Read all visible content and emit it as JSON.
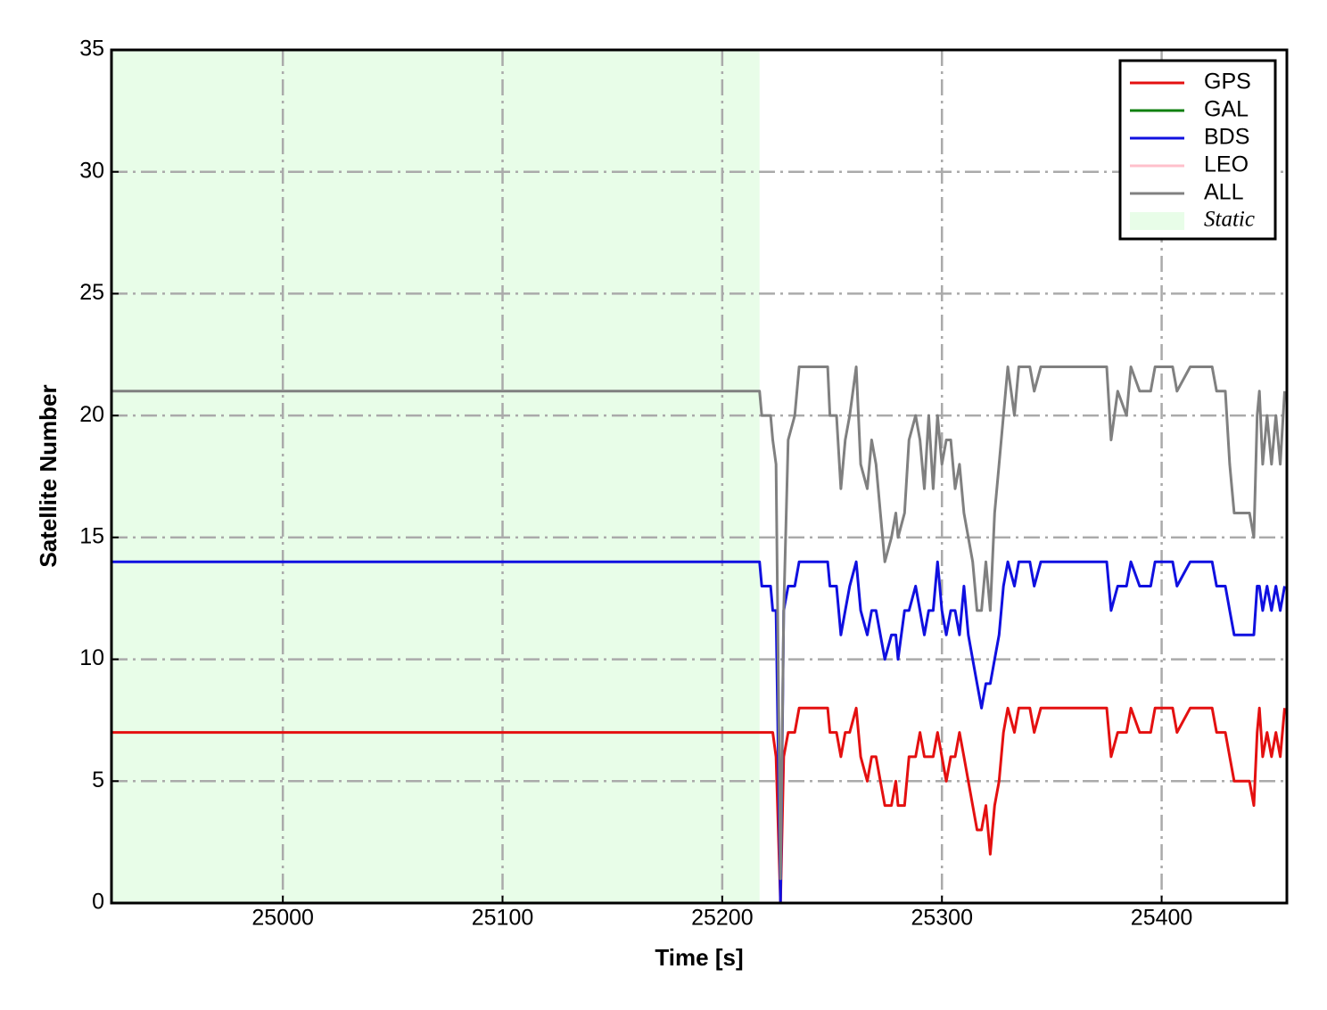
{
  "chart_data": {
    "type": "line",
    "xlabel": "Time [s]",
    "ylabel": "Satellite Number",
    "xlim": [
      24922,
      25457
    ],
    "ylim": [
      0,
      35
    ],
    "xticks": [
      25000,
      25100,
      25200,
      25300,
      25400
    ],
    "yticks": [
      0,
      5,
      10,
      15,
      20,
      25,
      30,
      35
    ],
    "grid": true,
    "legend": "upper right",
    "shaded": {
      "name": "Static",
      "color": "#e8fde8",
      "x": [
        24922,
        25217
      ]
    },
    "x": [
      24922,
      25217,
      25218,
      25222,
      25223,
      25224.5,
      25226.5,
      25228,
      25230,
      25233,
      25235,
      25248,
      25249,
      25252,
      25254,
      25256,
      25258,
      25261,
      25263,
      25266,
      25268,
      25270,
      25272,
      25274,
      25277,
      25279,
      25280,
      25283,
      25285,
      25288,
      25290,
      25292,
      25294,
      25296,
      25298,
      25300,
      25302,
      25304,
      25306,
      25308,
      25310,
      25312,
      25314,
      25316,
      25318,
      25320,
      25322,
      25324,
      25326,
      25328,
      25330,
      25333,
      25335,
      25340,
      25342,
      25345,
      25375,
      25377,
      25380,
      25384,
      25386,
      25390,
      25395,
      25397,
      25405,
      25407,
      25413,
      25423,
      25425,
      25429,
      25431,
      25433,
      25440,
      25442,
      25443.5,
      25444.5,
      25446,
      25448,
      25450,
      25452,
      25454,
      25456
    ],
    "series": [
      {
        "name": "GPS",
        "color": "#e41010",
        "values": [
          7,
          7,
          7,
          7,
          7,
          6,
          0,
          6,
          7,
          7,
          8,
          8,
          7,
          7,
          6,
          7,
          7,
          8,
          6,
          5,
          6,
          6,
          5,
          4,
          4,
          5,
          4,
          4,
          6,
          6,
          7,
          6,
          6,
          6,
          7,
          6,
          5,
          6,
          6,
          7,
          6,
          5,
          4,
          3,
          3,
          4,
          2,
          4,
          5,
          7,
          8,
          7,
          8,
          8,
          7,
          8,
          8,
          6,
          7,
          7,
          8,
          7,
          7,
          8,
          8,
          7,
          8,
          8,
          7,
          7,
          6,
          5,
          5,
          4,
          7,
          8,
          6,
          7,
          6,
          7,
          6,
          8
        ]
      },
      {
        "name": "GAL",
        "color": "#108010",
        "values": [
          0,
          0,
          0,
          0,
          0,
          0,
          0,
          0,
          0,
          0,
          0,
          0,
          0,
          0,
          0,
          0,
          0,
          0,
          0,
          0,
          0,
          0,
          0,
          0,
          0,
          0,
          0,
          0,
          0,
          0,
          0,
          0,
          0,
          0,
          0,
          0,
          0,
          0,
          0,
          0,
          0,
          0,
          0,
          0,
          0,
          0,
          0,
          0,
          0,
          0,
          0,
          0,
          0,
          0,
          0,
          0,
          0,
          0,
          0,
          0,
          0,
          0,
          0,
          0,
          0,
          0,
          0,
          0,
          0,
          0,
          0,
          0,
          0,
          0,
          0,
          0,
          0,
          0,
          0,
          0,
          0,
          0
        ]
      },
      {
        "name": "BDS",
        "color": "#1010e0",
        "values": [
          14,
          14,
          13,
          13,
          12,
          12,
          0,
          12,
          13,
          13,
          14,
          14,
          13,
          13,
          11,
          12,
          13,
          14,
          12,
          11,
          12,
          12,
          11,
          10,
          11,
          11,
          10,
          12,
          12,
          13,
          12,
          11,
          12,
          12,
          14,
          12,
          11,
          12,
          12,
          11,
          13,
          11,
          10,
          9,
          8,
          9,
          9,
          10,
          11,
          13,
          14,
          13,
          14,
          14,
          13,
          14,
          14,
          12,
          13,
          13,
          14,
          13,
          13,
          14,
          14,
          13,
          14,
          14,
          13,
          13,
          12,
          11,
          11,
          11,
          13,
          13,
          12,
          13,
          12,
          13,
          12,
          13
        ]
      },
      {
        "name": "LEO",
        "color": "#ffc0cb",
        "values": [
          0,
          0,
          0,
          0,
          0,
          0,
          0,
          0,
          0,
          0,
          0,
          0,
          0,
          0,
          0,
          0,
          0,
          0,
          0,
          0,
          0,
          0,
          0,
          0,
          0,
          0,
          0,
          0,
          0,
          0,
          0,
          0,
          0,
          0,
          0,
          0,
          0,
          0,
          0,
          0,
          0,
          0,
          0,
          0,
          0,
          0,
          0,
          0,
          0,
          0,
          0,
          0,
          0,
          0,
          0,
          0,
          0,
          0,
          0,
          0,
          0,
          0,
          0,
          0,
          0,
          0,
          0,
          0,
          0,
          0,
          0,
          0,
          0,
          0,
          0,
          0,
          0,
          0,
          0,
          0,
          0,
          0
        ]
      },
      {
        "name": "ALL",
        "color": "#808080",
        "values": [
          21,
          21,
          20,
          20,
          19,
          18,
          1,
          12,
          19,
          20,
          22,
          22,
          20,
          20,
          17,
          19,
          20,
          22,
          18,
          17,
          19,
          18,
          16,
          14,
          15,
          16,
          15,
          16,
          19,
          20,
          19,
          17,
          20,
          17,
          20,
          18,
          19,
          19,
          17,
          18,
          16,
          15,
          14,
          12,
          12,
          14,
          12,
          16,
          18,
          20,
          22,
          20,
          22,
          22,
          21,
          22,
          22,
          19,
          21,
          20,
          22,
          21,
          21,
          22,
          22,
          21,
          22,
          22,
          21,
          21,
          18,
          16,
          16,
          15,
          20,
          21,
          18,
          20,
          18,
          20,
          18,
          21
        ]
      }
    ]
  }
}
